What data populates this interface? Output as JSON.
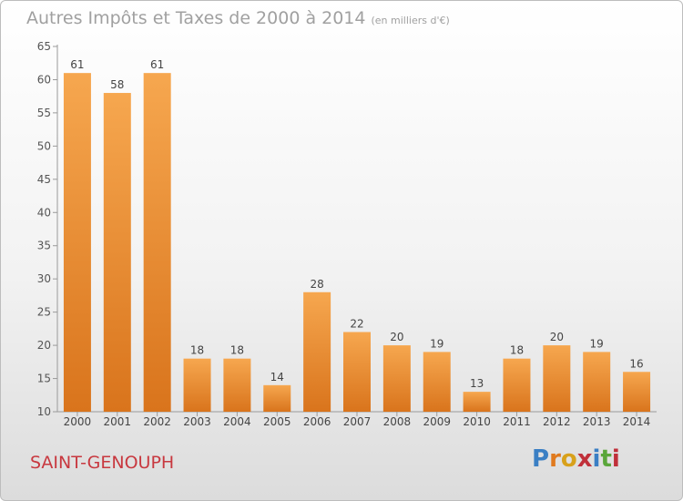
{
  "title": "Autres Impôts et Taxes de 2000 à 2014",
  "unit_label": "(en milliers d'€)",
  "town": "SAINT-GENOUPH",
  "logo": {
    "letters": [
      "P",
      "r",
      "o",
      "x",
      "i",
      "t",
      "i"
    ],
    "colors": [
      "#3a7fc4",
      "#e07a1e",
      "#d8a11b",
      "#c0303a",
      "#3a7fc4",
      "#5aa63a",
      "#c0303a"
    ]
  },
  "colors": {
    "bar_top": "#f6a74f",
    "bar_bottom": "#d9741c",
    "title": "#a0a0a0",
    "town": "#c8383f"
  },
  "chart_data": {
    "type": "bar",
    "title": "Autres Impôts et Taxes de 2000 à 2014",
    "subtitle": "(en milliers d'€)",
    "categories": [
      "2000",
      "2001",
      "2002",
      "2003",
      "2004",
      "2005",
      "2006",
      "2007",
      "2008",
      "2009",
      "2010",
      "2011",
      "2012",
      "2013",
      "2014"
    ],
    "values": [
      61,
      58,
      61,
      18,
      18,
      14,
      28,
      22,
      20,
      19,
      13,
      18,
      20,
      19,
      16
    ],
    "ylim": [
      10,
      65
    ],
    "yticks": [
      10,
      15,
      20,
      25,
      30,
      35,
      40,
      45,
      50,
      55,
      60,
      65
    ],
    "grid": false,
    "xlabel": "",
    "ylabel": ""
  }
}
